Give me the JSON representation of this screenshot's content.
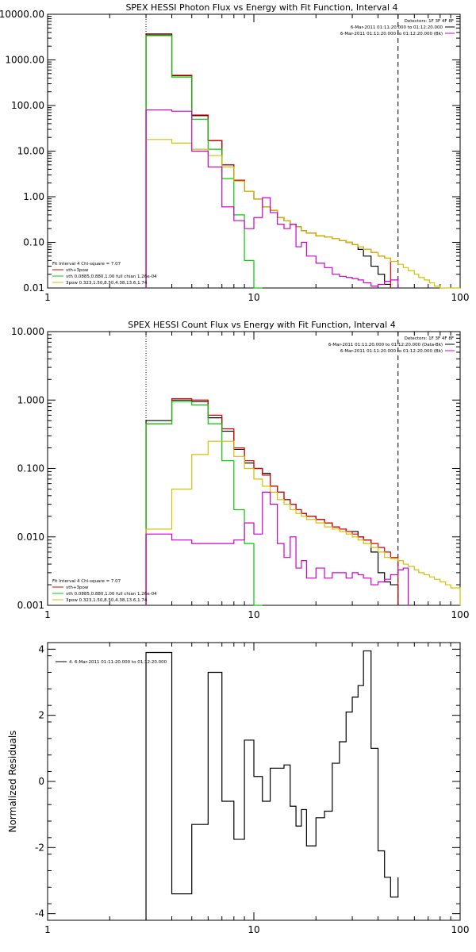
{
  "colors": {
    "total": "#000000",
    "background": "#000000",
    "vth_3pow": "#e00000",
    "vth": "#00cc00",
    "3pow": "#d4c000",
    "residual_bk": "#cc00cc"
  },
  "chart_data": [
    {
      "type": "line",
      "title": "SPEX HESSI Photon Flux vs Energy with Fit Function, Interval 4",
      "xlabel": "",
      "ylabel": "",
      "xscale": "log",
      "yscale": "log",
      "xlim": [
        1,
        100
      ],
      "ylim": [
        0.01,
        10000
      ],
      "xtick_labels": [
        "1",
        "10",
        "100"
      ],
      "xtick_values": [
        1,
        10,
        100
      ],
      "ytick_labels": [
        "0.01",
        "0.10",
        "1.00",
        "10.00",
        "100.00",
        "1000.00",
        "10000.00"
      ],
      "ytick_values": [
        0.01,
        0.1,
        1,
        10,
        100,
        1000,
        10000
      ],
      "ref_lines": [
        {
          "x": 3,
          "style": "dotted"
        },
        {
          "x": 50,
          "style": "dashed"
        }
      ],
      "legend_top": {
        "header": "Detectors: 1F 3F 4F 8F",
        "lines": [
          {
            "text": "6-Mar-2011 01:11:20.000 to 01:12:20.000",
            "color_key": "total"
          },
          {
            "text": "6-Mar-2011 01:11:20.000 to 01:12:20.000 (Bk)",
            "color_key": "residual_bk"
          }
        ]
      },
      "legend_bottom": {
        "header": "Fit Interval 4   Chi-square = 7.07",
        "lines": [
          {
            "text": "vth+3pow",
            "color_key": "vth_3pow"
          },
          {
            "text": "vth 0.0885,0.880,1.00  full chian 1.26e-04",
            "color_key": "vth"
          },
          {
            "text": "3pow 0.323,1.50,8.50,4.38,13.6,1.74",
            "color_key": "3pow"
          }
        ]
      },
      "edges": [
        3,
        4,
        5,
        6,
        7,
        8,
        9,
        10,
        11,
        12,
        13,
        14,
        15,
        16,
        17,
        18,
        20,
        22,
        24,
        26,
        28,
        30,
        32,
        34,
        37,
        40,
        43,
        46,
        50,
        53,
        56,
        60,
        63,
        67,
        71,
        75,
        80,
        85,
        90,
        100
      ],
      "series": [
        {
          "name": "data",
          "color_key": "total",
          "values": [
            3700,
            450,
            60,
            17,
            5,
            2.3,
            1.3,
            0.9,
            0.6,
            0.5,
            0.35,
            0.3,
            0.25,
            0.22,
            0.18,
            0.16,
            0.14,
            0.13,
            0.12,
            0.11,
            0.1,
            0.09,
            0.07,
            0.05,
            0.03,
            0.02,
            0.012
          ]
        },
        {
          "name": "vth+3pow",
          "color_key": "vth_3pow",
          "values": [
            3500,
            460,
            62,
            17,
            5,
            2.3,
            1.3,
            0.9,
            0.6,
            0.5,
            0.35,
            0.3,
            0.25,
            0.22,
            0.18,
            0.16,
            0.14,
            0.13,
            0.12,
            0.11,
            0.1,
            0.09,
            0.08,
            0.07,
            0.06,
            0.05,
            0.045
          ]
        },
        {
          "name": "vth",
          "color_key": "vth",
          "values": [
            3400,
            420,
            50,
            11,
            2.5,
            0.4,
            0.04,
            0.01
          ]
        },
        {
          "name": "3pow",
          "color_key": "3pow",
          "values": [
            18,
            15,
            11,
            8,
            4.5,
            2.2,
            1.3,
            0.9,
            0.6,
            0.5,
            0.35,
            0.3,
            0.25,
            0.22,
            0.18,
            0.16,
            0.14,
            0.13,
            0.12,
            0.11,
            0.1,
            0.09,
            0.08,
            0.07,
            0.06,
            0.05,
            0.045,
            0.038,
            0.033,
            0.028,
            0.024,
            0.02,
            0.017,
            0.015,
            0.013,
            0.011,
            0.01,
            0.009,
            0.008
          ]
        },
        {
          "name": "bk",
          "color_key": "residual_bk",
          "values": [
            80,
            75,
            10,
            4.5,
            0.6,
            0.3,
            0.2,
            0.35,
            0.95,
            0.45,
            0.25,
            0.2,
            0.25,
            0.08,
            0.1,
            0.05,
            0.035,
            0.028,
            0.02,
            0.018,
            0.017,
            0.016,
            0.015,
            0.013,
            0.011,
            0.012,
            0.014,
            0.015
          ]
        }
      ]
    },
    {
      "type": "line",
      "title": "SPEX HESSI Count Flux vs Energy with Fit Function, Interval 4",
      "xlabel": "",
      "ylabel": "",
      "xscale": "log",
      "yscale": "log",
      "xlim": [
        1,
        100
      ],
      "ylim": [
        0.001,
        10
      ],
      "xtick_labels": [
        "1",
        "10",
        "100"
      ],
      "xtick_values": [
        1,
        10,
        100
      ],
      "ytick_labels": [
        "0.001",
        "0.010",
        "0.100",
        "1.000",
        "10.000"
      ],
      "ytick_values": [
        0.001,
        0.01,
        0.1,
        1,
        10
      ],
      "ref_lines": [
        {
          "x": 3,
          "style": "dotted"
        },
        {
          "x": 50,
          "style": "dashed"
        }
      ],
      "legend_top": {
        "header": "Detectors: 1F 3F 4F 8F",
        "lines": [
          {
            "text": "6-Mar-2011 01:11:20.000 to 01:12:20.000 (Data-Bk)",
            "color_key": "total"
          },
          {
            "text": "6-Mar-2011 01:11:20.000 to 01:12:20.000 (Bk)",
            "color_key": "residual_bk"
          }
        ]
      },
      "legend_bottom": {
        "header": "Fit Interval 4   Chi-square = 7.07",
        "lines": [
          {
            "text": "vth+3pow",
            "color_key": "vth_3pow"
          },
          {
            "text": "vth 0.0885,0.880,1.00  full chian 1.26e-04",
            "color_key": "vth"
          },
          {
            "text": "3pow 0.323,1.50,8.50,4.38,13.6,1.74",
            "color_key": "3pow"
          }
        ]
      },
      "edges": [
        3,
        4,
        5,
        6,
        7,
        8,
        9,
        10,
        11,
        12,
        13,
        14,
        15,
        16,
        17,
        18,
        20,
        22,
        24,
        26,
        28,
        30,
        32,
        34,
        37,
        40,
        43,
        46,
        50,
        53,
        56,
        60,
        63,
        67,
        71,
        75,
        80,
        85,
        90,
        100
      ],
      "series": [
        {
          "name": "data-bk",
          "color_key": "total",
          "values": [
            0.5,
            1.0,
            0.95,
            0.55,
            0.35,
            0.19,
            0.12,
            0.1,
            0.085,
            0.055,
            0.045,
            0.035,
            0.03,
            0.025,
            0.022,
            0.02,
            0.018,
            0.016,
            0.014,
            0.013,
            0.012,
            0.012,
            0.01,
            0.009,
            0.006,
            0.003,
            0.0022,
            0.002
          ]
        },
        {
          "name": "vth+3pow",
          "color_key": "vth_3pow",
          "values": [
            0.45,
            1.05,
            1.0,
            0.6,
            0.38,
            0.2,
            0.13,
            0.1,
            0.08,
            0.055,
            0.045,
            0.035,
            0.03,
            0.025,
            0.022,
            0.02,
            0.018,
            0.016,
            0.014,
            0.013,
            0.012,
            0.011,
            0.01,
            0.009,
            0.008,
            0.007,
            0.006,
            0.005
          ]
        },
        {
          "name": "vth",
          "color_key": "vth",
          "values": [
            0.45,
            0.95,
            0.85,
            0.45,
            0.13,
            0.025,
            0.008,
            0.0005
          ]
        },
        {
          "name": "3pow",
          "color_key": "3pow",
          "values": [
            0.013,
            0.05,
            0.16,
            0.25,
            0.25,
            0.15,
            0.1,
            0.07,
            0.055,
            0.045,
            0.035,
            0.03,
            0.025,
            0.022,
            0.02,
            0.018,
            0.016,
            0.014,
            0.013,
            0.012,
            0.011,
            0.01,
            0.009,
            0.008,
            0.007,
            0.006,
            0.005,
            0.0048,
            0.0045,
            0.004,
            0.0037,
            0.0033,
            0.003,
            0.0028,
            0.0026,
            0.0024,
            0.0022,
            0.002,
            0.0018
          ]
        },
        {
          "name": "bk",
          "color_key": "residual_bk",
          "values": [
            0.011,
            0.009,
            0.008,
            0.008,
            0.008,
            0.009,
            0.016,
            0.011,
            0.045,
            0.03,
            0.008,
            0.005,
            0.01,
            0.0035,
            0.0045,
            0.0025,
            0.0035,
            0.0025,
            0.003,
            0.003,
            0.0025,
            0.003,
            0.0028,
            0.0025,
            0.002,
            0.0022,
            0.0024,
            0.0028,
            0.0033,
            0.0035
          ]
        }
      ]
    },
    {
      "type": "line",
      "title": "",
      "xlabel": "",
      "ylabel": "Normalized Residuals",
      "xscale": "log",
      "yscale": "linear",
      "xlim": [
        1,
        100
      ],
      "ylim": [
        -4.2,
        4.2
      ],
      "xtick_labels": [
        "1",
        "10",
        "100"
      ],
      "xtick_values": [
        1,
        10,
        100
      ],
      "ytick_labels": [
        "4",
        "2",
        "0",
        "-2",
        "-4"
      ],
      "ytick_values": [
        4,
        2,
        0,
        -2,
        -4
      ],
      "legend": {
        "text": "4.  6-Mar-2011 01:11:20.000 to 01:12:20.000",
        "color_key": "total"
      },
      "edges": [
        3,
        4,
        5,
        6,
        7,
        8,
        9,
        10,
        11,
        12,
        13,
        14,
        15,
        16,
        17,
        18,
        20,
        22,
        24,
        26,
        28,
        30,
        32,
        34,
        37,
        40,
        43,
        46,
        50
      ],
      "series": [
        {
          "name": "residuals",
          "color_key": "total",
          "values": [
            3.9,
            -3.4,
            -1.3,
            3.3,
            -0.6,
            -1.75,
            1.25,
            0.15,
            -0.6,
            0.4,
            0.4,
            0.5,
            -0.75,
            -1.35,
            -0.85,
            -1.95,
            -1.1,
            -0.9,
            0.55,
            1.2,
            2.1,
            2.55,
            2.9,
            3.95,
            1.0,
            -2.1,
            -2.9,
            -3.5,
            -2.9
          ]
        }
      ]
    }
  ]
}
